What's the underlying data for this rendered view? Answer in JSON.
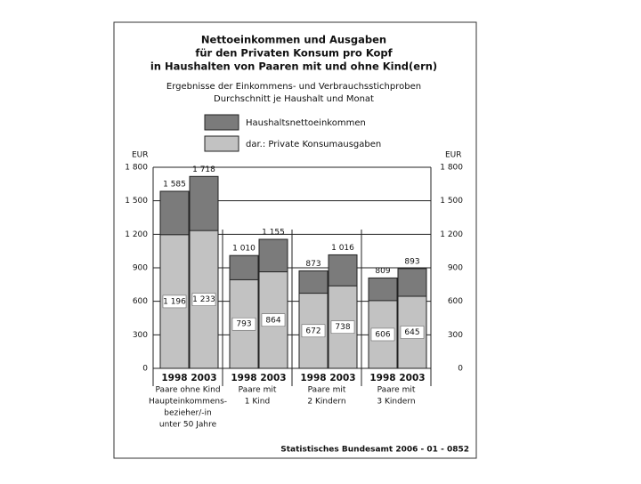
{
  "chart_data": {
    "type": "bar",
    "title": [
      "Nettoeinkommen und Ausgaben",
      "für den Privaten Konsum pro Kopf",
      "in Haushalten von Paaren mit und ohne Kind(ern)"
    ],
    "subtitle": [
      "Ergebnisse der Einkommens- und Verbrauchsstichproben",
      "Durchschnitt je Haushalt und Monat"
    ],
    "categories": [
      "1998",
      "2003",
      "1998",
      "2003",
      "1998",
      "2003",
      "1998",
      "2003"
    ],
    "groups": [
      [
        "Paare ohne Kind",
        "Haupteinkommens-",
        "bezieher/-in",
        "unter 50 Jahre"
      ],
      [
        "Paare mit",
        "1 Kind"
      ],
      [
        "Paare mit",
        "2 Kindern"
      ],
      [
        "Paare mit",
        "3 Kindern"
      ]
    ],
    "series": [
      {
        "name": "Haushaltsnettoeinkommen",
        "color": "#7b7b7b",
        "values": [
          1585,
          1718,
          1010,
          1155,
          873,
          1016,
          809,
          893
        ],
        "value_labels": [
          "1 585",
          "1 718",
          "1 010",
          "1 155",
          "873",
          "1 016",
          "809",
          "893"
        ]
      },
      {
        "name": "dar.: Private Konsumausgaben",
        "color": "#c2c2c2",
        "values": [
          1196,
          1233,
          793,
          864,
          672,
          738,
          606,
          645
        ],
        "value_labels": [
          "1 196",
          "1 233",
          "793",
          "864",
          "672",
          "738",
          "606",
          "645"
        ]
      }
    ],
    "y_unit": "EUR",
    "ylim": [
      0,
      1800
    ],
    "yticks": [
      0,
      300,
      600,
      900,
      {
        "value": 1200,
        "label": "1 200"
      },
      {
        "value": 1500,
        "label": "1 500"
      },
      {
        "value": 1800,
        "label": "1 800"
      }
    ],
    "grid": true,
    "source": "Statistisches Bundesamt 2006 - 01 - 0852"
  }
}
